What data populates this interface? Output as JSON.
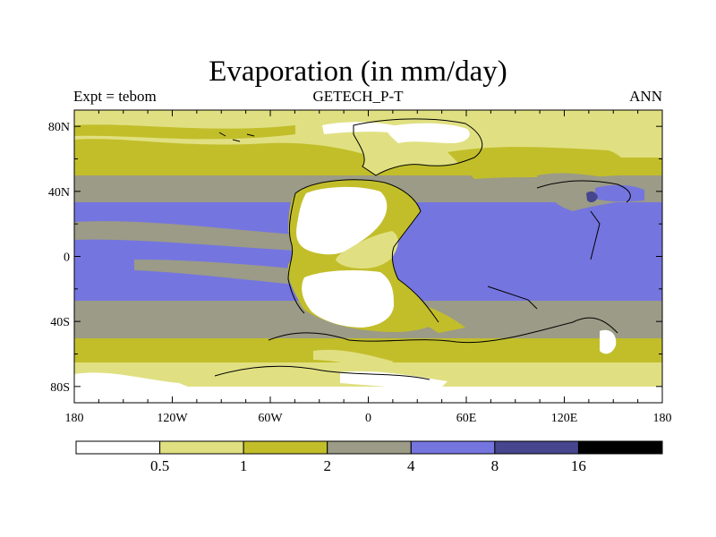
{
  "title": "Evaporation (in mm/day)",
  "left_label": "Expt = tebom",
  "center_label": "GETECH_P-T",
  "right_label": "ANN",
  "x_ticks": [
    {
      "lon": -180,
      "label": "180"
    },
    {
      "lon": -120,
      "label": "120W"
    },
    {
      "lon": -60,
      "label": "60W"
    },
    {
      "lon": 0,
      "label": "0"
    },
    {
      "lon": 60,
      "label": "60E"
    },
    {
      "lon": 120,
      "label": "120E"
    },
    {
      "lon": 180,
      "label": "180"
    }
  ],
  "y_ticks": [
    {
      "lat": 80,
      "label": "80N"
    },
    {
      "lat": 40,
      "label": "40N"
    },
    {
      "lat": 0,
      "label": "0"
    },
    {
      "lat": -40,
      "label": "40S"
    },
    {
      "lat": -80,
      "label": "80S"
    }
  ],
  "colorbar": {
    "colors": [
      "#ffffff",
      "#e0e082",
      "#c2be2a",
      "#9b9b87",
      "#7575e0",
      "#46468e",
      "#000000"
    ],
    "labels": [
      "0.5",
      "1",
      "2",
      "4",
      "8",
      "16"
    ]
  },
  "chart_data": {
    "type": "filled-contour-map",
    "title": "Evaporation (in mm/day)",
    "units": "mm/day",
    "xlim": [
      -180,
      180
    ],
    "ylim": [
      -90,
      90
    ],
    "levels": [
      0.5,
      1,
      2,
      4,
      8,
      16
    ],
    "zonal_bands": [
      {
        "lat_from": 90,
        "lat_to": 83,
        "level": "0.5-1"
      },
      {
        "lat_from": 83,
        "lat_to": 72,
        "level": "1-2"
      },
      {
        "lat_from": 72,
        "lat_to": 50,
        "level": "1-2"
      },
      {
        "lat_from": 50,
        "lat_to": 33,
        "level": "2-4"
      },
      {
        "lat_from": 33,
        "lat_to": -27,
        "level": "4-8"
      },
      {
        "lat_from": -27,
        "lat_to": -50,
        "level": "2-4"
      },
      {
        "lat_from": -50,
        "lat_to": -63,
        "level": "1-2"
      },
      {
        "lat_from": -63,
        "lat_to": -78,
        "level": "0.5-1"
      },
      {
        "lat_from": -78,
        "lat_to": -90,
        "level": "<0.5"
      }
    ],
    "features": [
      {
        "region": "Pangea (tropical interior)",
        "level": "<0.5"
      },
      {
        "region": "Northern continent",
        "level": "0.5-1"
      },
      {
        "region": "Tethys Ocean",
        "level": "4-8"
      },
      {
        "region": "Small patch near 140E,40N",
        "level": "8-16"
      }
    ]
  }
}
